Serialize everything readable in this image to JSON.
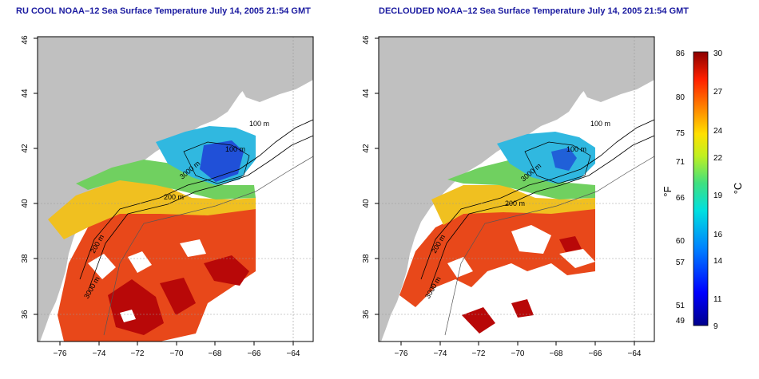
{
  "panels": [
    {
      "title": "RU COOL NOAA–12 Sea Surface Temperature July 14, 2005 21:54 GMT",
      "x_ticks": [
        "−76",
        "−74",
        "−72",
        "−70",
        "−68",
        "−66",
        "−64"
      ],
      "y_ticks": [
        "36",
        "38",
        "40",
        "42",
        "44",
        "46"
      ],
      "contour_labels": [
        "100 m",
        "100 m",
        "200 m",
        "3000 m",
        "200 m",
        "3000 m"
      ]
    },
    {
      "title": "DECLOUDED NOAA–12 Sea Surface Temperature July 14, 2005 21:54 GMT",
      "x_ticks": [
        "−76",
        "−74",
        "−72",
        "−70",
        "−68",
        "−66",
        "−64"
      ],
      "y_ticks": [
        "36",
        "38",
        "40",
        "42",
        "44",
        "46"
      ],
      "contour_labels": [
        "100 m",
        "100 m",
        "200 m",
        "3000 m",
        "200 m",
        "3000 m"
      ]
    }
  ],
  "colorbar": {
    "f_label": "°F",
    "c_label": "°C",
    "f_ticks": [
      "86",
      "80",
      "75",
      "71",
      "66",
      "60",
      "57",
      "51",
      "49"
    ],
    "c_ticks": [
      "30",
      "27",
      "24",
      "22",
      "19",
      "16",
      "14",
      "11",
      "9"
    ]
  },
  "colors": {
    "title": "#1a1aa0",
    "land": "#c0c0c0",
    "ocean": "#ffffff",
    "warm": "#e03010",
    "hot": "#b00000",
    "mid": "#f0d020",
    "cool": "#30c0e0",
    "cold": "#2040d0"
  }
}
